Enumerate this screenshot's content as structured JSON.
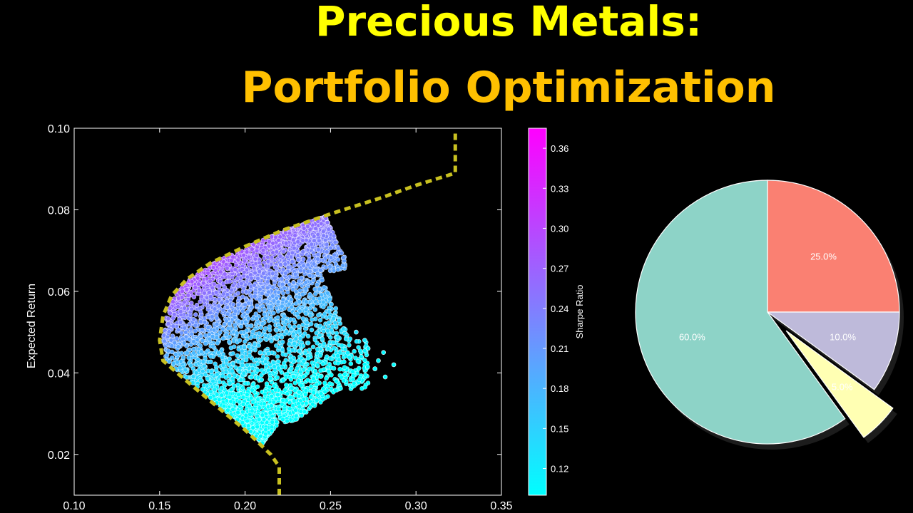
{
  "header": {
    "title_line1": "Precious Metals:",
    "title_line2": "Portfolio Optimization"
  },
  "colors": {
    "title_line1": "#ffff00",
    "title_line2": "#ffc000",
    "frontier": "#c8c020",
    "cmap_low": "#00ffff",
    "cmap_high": "#ff00ff"
  },
  "chart_data": [
    {
      "type": "scatter",
      "xlabel": "",
      "ylabel": "Expected Return",
      "xlim": [
        0.1,
        0.35
      ],
      "ylim": [
        0.01,
        0.1
      ],
      "x_ticks": [
        "0.10",
        "0.15",
        "0.20",
        "0.25",
        "0.30",
        "0.35"
      ],
      "y_ticks": [
        "0.02",
        "0.04",
        "0.06",
        "0.08",
        "0.10"
      ],
      "colorbar": {
        "label": "Sharpe Ratio",
        "range": [
          0.1,
          0.375
        ],
        "ticks": [
          "0.12",
          "0.15",
          "0.18",
          "0.21",
          "0.24",
          "0.27",
          "0.30",
          "0.33",
          "0.36"
        ],
        "colormap": "cool"
      },
      "efficient_frontier": {
        "style": "dashed",
        "points": [
          [
            0.22,
            0.01
          ],
          [
            0.22,
            0.017
          ],
          [
            0.215,
            0.02
          ],
          [
            0.2,
            0.026
          ],
          [
            0.18,
            0.033
          ],
          [
            0.163,
            0.039
          ],
          [
            0.152,
            0.043
          ],
          [
            0.15,
            0.048
          ],
          [
            0.152,
            0.054
          ],
          [
            0.157,
            0.059
          ],
          [
            0.166,
            0.063
          ],
          [
            0.18,
            0.067
          ],
          [
            0.2,
            0.071
          ],
          [
            0.222,
            0.075
          ],
          [
            0.25,
            0.079
          ],
          [
            0.28,
            0.083
          ],
          [
            0.3,
            0.086
          ],
          [
            0.323,
            0.089
          ],
          [
            0.323,
            0.099
          ]
        ]
      },
      "cloud_summary": {
        "min_volatility": 0.15,
        "max_volatility": 0.29,
        "min_return": 0.02,
        "max_return": 0.086
      }
    },
    {
      "type": "pie",
      "slices": [
        {
          "label": "25.0%",
          "value": 25.0,
          "color": "#fa8072",
          "exploded": false
        },
        {
          "label": "10.0%",
          "value": 10.0,
          "color": "#bebada",
          "exploded": false
        },
        {
          "label": "5.0%",
          "value": 5.0,
          "color": "#ffffb3",
          "exploded": true
        },
        {
          "label": "60.0%",
          "value": 60.0,
          "color": "#8dd3c7",
          "exploded": false
        }
      ]
    }
  ]
}
